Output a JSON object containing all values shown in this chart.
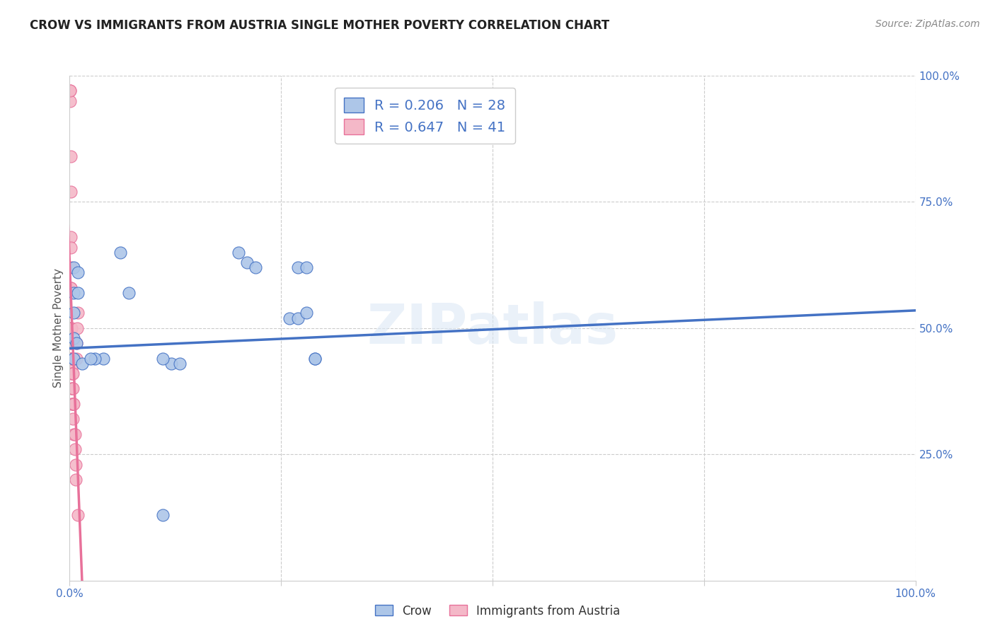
{
  "title": "CROW VS IMMIGRANTS FROM AUSTRIA SINGLE MOTHER POVERTY CORRELATION CHART",
  "source": "Source: ZipAtlas.com",
  "ylabel": "Single Mother Poverty",
  "xlim": [
    0,
    1.0
  ],
  "ylim": [
    0,
    1.0
  ],
  "watermark": "ZIPatlas",
  "crow_R": 0.206,
  "crow_N": 28,
  "austria_R": 0.647,
  "austria_N": 41,
  "crow_color": "#adc6e8",
  "austria_color": "#f4b8c8",
  "crow_line_color": "#4472c4",
  "austria_line_color": "#e8719a",
  "crow_scatter_x": [
    0.005,
    0.005,
    0.01,
    0.01,
    0.005,
    0.005,
    0.005,
    0.008,
    0.015,
    0.04,
    0.06,
    0.07,
    0.2,
    0.21,
    0.22,
    0.26,
    0.27,
    0.27,
    0.28,
    0.28,
    0.29,
    0.29,
    0.12,
    0.13,
    0.11,
    0.11,
    0.03,
    0.025
  ],
  "crow_scatter_y": [
    0.62,
    0.57,
    0.57,
    0.61,
    0.53,
    0.48,
    0.44,
    0.47,
    0.43,
    0.44,
    0.65,
    0.57,
    0.65,
    0.63,
    0.62,
    0.52,
    0.52,
    0.62,
    0.62,
    0.53,
    0.44,
    0.44,
    0.43,
    0.43,
    0.44,
    0.13,
    0.44,
    0.44
  ],
  "austria_scatter_x": [
    0.0005,
    0.0005,
    0.0005,
    0.001,
    0.001,
    0.001,
    0.001,
    0.001,
    0.0015,
    0.0015,
    0.0015,
    0.0015,
    0.0015,
    0.0015,
    0.002,
    0.002,
    0.002,
    0.002,
    0.0025,
    0.0025,
    0.0025,
    0.0025,
    0.003,
    0.003,
    0.003,
    0.0035,
    0.0035,
    0.004,
    0.004,
    0.004,
    0.005,
    0.005,
    0.006,
    0.006,
    0.007,
    0.007,
    0.008,
    0.008,
    0.009,
    0.01,
    0.01
  ],
  "austria_scatter_y": [
    0.97,
    0.95,
    0.97,
    0.84,
    0.77,
    0.68,
    0.58,
    0.5,
    0.66,
    0.62,
    0.58,
    0.5,
    0.47,
    0.44,
    0.5,
    0.47,
    0.44,
    0.42,
    0.44,
    0.41,
    0.38,
    0.35,
    0.44,
    0.41,
    0.38,
    0.41,
    0.38,
    0.35,
    0.35,
    0.32,
    0.35,
    0.29,
    0.29,
    0.26,
    0.23,
    0.2,
    0.44,
    0.47,
    0.5,
    0.53,
    0.13
  ],
  "crow_trend_x": [
    0.0,
    1.0
  ],
  "crow_trend_y": [
    0.46,
    0.535
  ],
  "background_color": "#ffffff",
  "grid_color": "#cccccc"
}
